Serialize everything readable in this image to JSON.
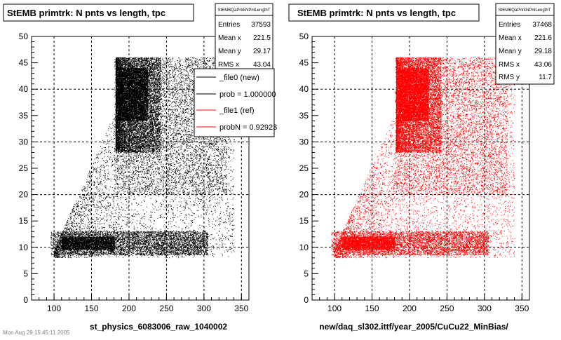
{
  "chart_data": [
    {
      "type": "scatter",
      "title": "StEMB primtrk: N pnts vs length, tpc",
      "xlabel": "st_physics_6083006_raw_1040002",
      "ylabel": "",
      "xlim": [
        70,
        360
      ],
      "ylim": [
        0,
        50
      ],
      "x_ticks": [
        100,
        150,
        200,
        250,
        300,
        350
      ],
      "y_ticks": [
        0,
        5,
        10,
        15,
        20,
        25,
        30,
        35,
        40,
        45,
        50
      ],
      "grid": true,
      "marker_color": "#000000",
      "stats": {
        "title": "StEMBQaPrtrkNPntLengthT",
        "rows": [
          {
            "label": "Entries",
            "value": "37593"
          },
          {
            "label": "Mean x",
            "value": "221.5"
          },
          {
            "label": "Mean y",
            "value": "29.17"
          },
          {
            "label": "RMS x",
            "value": "43.04"
          }
        ]
      },
      "legend": {
        "position": "top-right",
        "entries": [
          {
            "label": "_file0 (new)",
            "color": "#000000"
          },
          {
            "label": "prob = 1.000000",
            "color": "#000000"
          },
          {
            "label": "_file1 (ref)",
            "color": "#ff0000"
          },
          {
            "label": "probN = 0.92923",
            "color": "#ff0000"
          }
        ]
      },
      "regions": [
        {
          "note": "dense band",
          "x": [
            180,
            245
          ],
          "y": [
            28,
            46
          ],
          "density": "very high"
        },
        {
          "note": "upper plateau",
          "x": [
            180,
            330
          ],
          "y": [
            20,
            46
          ],
          "density": "medium"
        },
        {
          "note": "low band",
          "x": [
            95,
            300
          ],
          "y": [
            8,
            13
          ],
          "density": "high"
        }
      ]
    },
    {
      "type": "scatter",
      "title": "StEMB primtrk: N pnts vs length, tpc",
      "xlabel": "new/daq_sl302.ittf/year_2005/CuCu22_MinBias/",
      "ylabel": "",
      "xlim": [
        70,
        360
      ],
      "ylim": [
        0,
        50
      ],
      "x_ticks": [
        100,
        150,
        200,
        250,
        300,
        350
      ],
      "y_ticks": [
        0,
        5,
        10,
        15,
        20,
        25,
        30,
        35,
        40,
        45,
        50
      ],
      "grid": true,
      "marker_color": "#ff0000",
      "stats": {
        "title": "StEMBQaPrtrkNPntLengthT",
        "rows": [
          {
            "label": "Entries",
            "value": "37468"
          },
          {
            "label": "Mean x",
            "value": "221.6"
          },
          {
            "label": "Mean y",
            "value": "29.18"
          },
          {
            "label": "RMS x",
            "value": "43.06"
          },
          {
            "label": "RMS y",
            "value": "11.7"
          }
        ]
      },
      "regions": [
        {
          "note": "dense band",
          "x": [
            180,
            245
          ],
          "y": [
            28,
            46
          ],
          "density": "very high"
        },
        {
          "note": "upper plateau",
          "x": [
            180,
            330
          ],
          "y": [
            20,
            46
          ],
          "density": "medium"
        },
        {
          "note": "low band",
          "x": [
            95,
            300
          ],
          "y": [
            8,
            13
          ],
          "density": "high"
        }
      ]
    }
  ],
  "footer_text": "Mon Aug 29 15:45:11 2005"
}
